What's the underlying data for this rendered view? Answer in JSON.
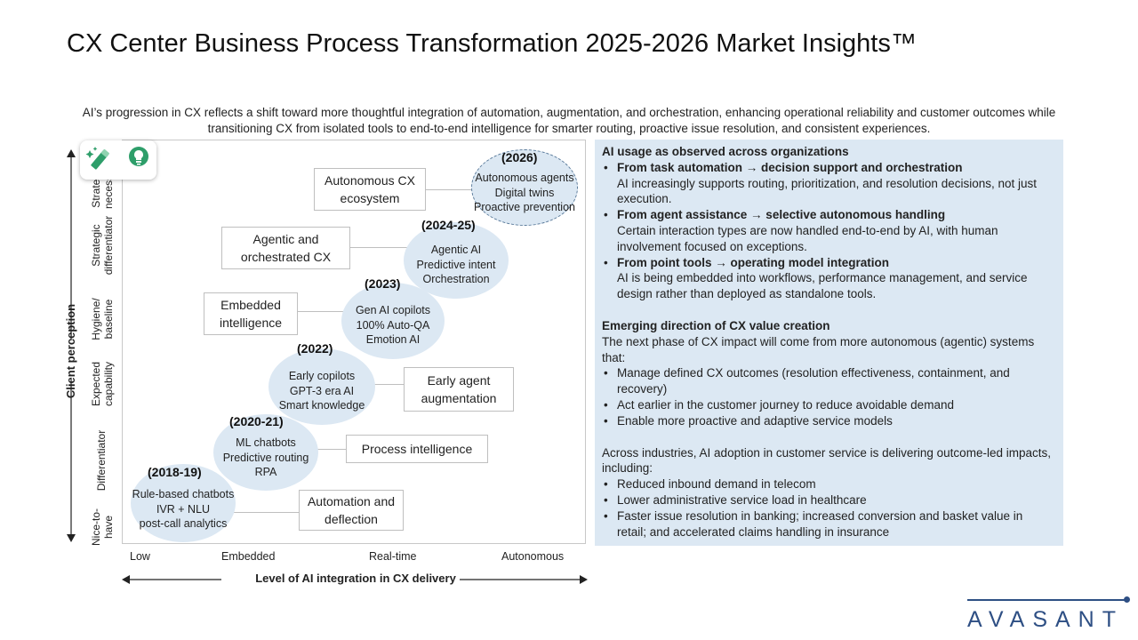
{
  "title": "CX Center Business Process Transformation 2025-2026 Market Insights™",
  "subtitle": "AI’s progression in CX reflects a shift toward more thoughtful integration of automation, augmentation, and orchestration, enhancing operational reliability and customer outcomes while transitioning CX from isolated tools to end-to-end intelligence for smarter routing, proactive issue resolution, and consistent experiences.",
  "diagram": {
    "y_axis_title": "Client perception",
    "y_levels": [
      "Strategic necessity",
      "Strategic differentiator",
      "Hygiene/ baseline",
      "Expected capability",
      "Differentiator",
      "Nice-to-have"
    ],
    "x_axis_title": "Level of AI integration in CX delivery",
    "x_levels": [
      "Low",
      "Embedded",
      "Real-time",
      "Autonomous"
    ],
    "stages": [
      {
        "year": "(2018-19)",
        "items": [
          "Rule-based chatbots",
          "IVR + NLU",
          "post-call analytics"
        ],
        "label": "Automation and deflection"
      },
      {
        "year": "(2020-21)",
        "items": [
          "ML chatbots",
          "Predictive routing",
          "RPA"
        ],
        "label": "Process intelligence"
      },
      {
        "year": "(2022)",
        "items": [
          "Early copilots",
          "GPT-3 era AI",
          "Smart knowledge"
        ],
        "label": "Early agent augmentation"
      },
      {
        "year": "(2023)",
        "items": [
          "Gen AI copilots",
          "100% Auto-QA",
          "Emotion AI"
        ],
        "label": "Embedded intelligence"
      },
      {
        "year": "(2024-25)",
        "items": [
          "Agentic AI",
          "Predictive intent",
          "Orchestration"
        ],
        "label": "Agentic and orchestrated CX"
      },
      {
        "year": "(2026)",
        "items": [
          "Autonomous agents",
          "Digital twins",
          "Proactive prevention"
        ],
        "label": "Autonomous CX ecosystem"
      }
    ]
  },
  "panel": {
    "heading1": "AI usage as observed across organizations",
    "shifts": [
      {
        "head": "From task automation → decision support and orchestration",
        "body": "AI increasingly supports routing, prioritization, and resolution decisions, not just execution."
      },
      {
        "head": "From agent assistance → selective autonomous handling",
        "body": "Certain interaction types are now handled end-to-end by AI, with human involvement focused on exceptions."
      },
      {
        "head": "From point tools → operating model integration",
        "body": "AI is being embedded into workflows, performance management, and service design rather than deployed as standalone tools."
      }
    ],
    "heading2": "Emerging direction of CX value creation",
    "intro2": "The next phase of CX impact will come from more autonomous (agentic) systems that:",
    "bullets2": [
      "Manage defined CX outcomes (resolution effectiveness, containment, and recovery)",
      "Act earlier in the customer journey to reduce avoidable demand",
      "Enable more proactive and adaptive service models"
    ],
    "intro3": "Across industries, AI adoption in customer service is delivering outcome-led impacts, including:",
    "bullets3": [
      "Reduced inbound demand in telecom",
      "Lower administrative service load in healthcare",
      "Faster issue resolution in banking; increased conversion and basket value in retail; and accelerated claims handling in insurance"
    ]
  },
  "logo": "AVASANT",
  "colors": {
    "bubble": "#dce8f3",
    "panel": "#dce8f3",
    "brand": "#2e4f84",
    "icon_green": "#2e9e6a"
  },
  "icons": [
    "magic-edit-icon",
    "lightbulb-icon"
  ]
}
